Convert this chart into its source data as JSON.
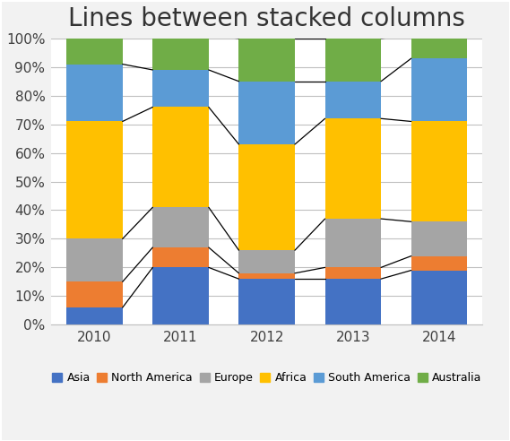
{
  "title": "Lines between stacked columns",
  "years": [
    2010,
    2011,
    2012,
    2013,
    2014
  ],
  "categories": [
    "Asia",
    "North America",
    "Europe",
    "Africa",
    "South America",
    "Australia"
  ],
  "values": {
    "Asia": [
      6,
      20,
      16,
      16,
      19
    ],
    "North America": [
      9,
      7,
      2,
      4,
      5
    ],
    "Europe": [
      15,
      14,
      8,
      17,
      12
    ],
    "Africa": [
      41,
      35,
      37,
      35,
      35
    ],
    "South America": [
      20,
      13,
      22,
      13,
      22
    ],
    "Australia": [
      10,
      12,
      15,
      15,
      8
    ]
  },
  "colors": {
    "Asia": "#4472C4",
    "North America": "#ED7D31",
    "Europe": "#A5A5A5",
    "Africa": "#FFC000",
    "South America": "#5B9BD5",
    "Australia": "#70AD47"
  },
  "bar_width": 0.65,
  "ylim": [
    0,
    100
  ],
  "ytick_labels": [
    "0%",
    "10%",
    "20%",
    "30%",
    "40%",
    "50%",
    "60%",
    "70%",
    "80%",
    "90%",
    "100%"
  ],
  "ytick_values": [
    0,
    10,
    20,
    30,
    40,
    50,
    60,
    70,
    80,
    90,
    100
  ],
  "bg_color": "#FFFFFF",
  "fig_bg_color": "#F2F2F2",
  "grid_color": "#C0C0C0",
  "title_fontsize": 20,
  "legend_fontsize": 9,
  "tick_fontsize": 11,
  "line_color": "#000000",
  "line_width": 0.9,
  "border_color": "#BFBFBF"
}
